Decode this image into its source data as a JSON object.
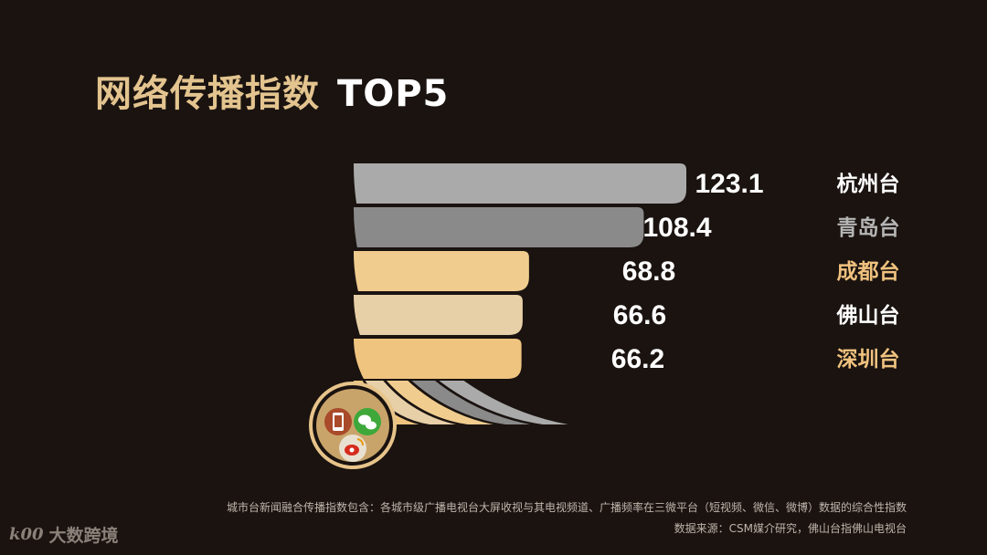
{
  "title": {
    "main": "网络传播指数",
    "suffix": "TOP5"
  },
  "chart_data": {
    "type": "bar",
    "title": "网络传播指数 TOP5",
    "categories": [
      "杭州台",
      "青岛台",
      "成都台",
      "佛山台",
      "深圳台"
    ],
    "values": [
      123.1,
      108.4,
      68.8,
      66.6,
      66.2
    ],
    "value_labels": [
      "123.1",
      "108.4",
      "68.8",
      "66.6",
      "66.2"
    ],
    "colors": {
      "silver": "#aaaaaa",
      "gray": "#8a8a8a",
      "gold_light": "#f0cd8e",
      "gold_pale": "#e7cfa7",
      "gold": "#efc47f",
      "name_gray": "#b5b5b5",
      "name_gold": "#f0c27e",
      "name_white": "#ffffff"
    },
    "legend": "none",
    "grid": false
  },
  "icons": [
    "phone-icon",
    "wechat-icon",
    "weibo-icon"
  ],
  "footnote": {
    "line1": "城市台新闻融合传播指数包含：各城市级广播电视台大屏收视与其电视频道、广播频率在三微平台（短视频、微信、微博）数据的综合性指数",
    "line2": "数据来源：CSM媒介研究，佛山台指佛山电视台"
  },
  "watermark": {
    "logo": "k00",
    "text": "大数跨境"
  }
}
